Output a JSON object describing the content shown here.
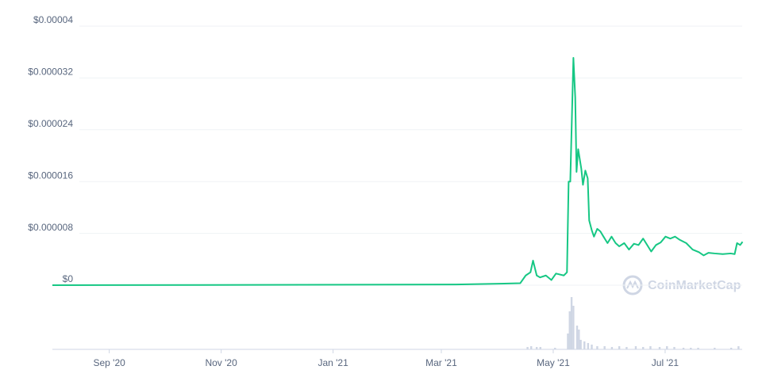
{
  "chart_data": {
    "type": "line",
    "color": "#16c784",
    "grid": true,
    "xlim": [
      0,
      376
    ],
    "xticks": [
      {
        "value": 31,
        "label": "Sep '20"
      },
      {
        "value": 92,
        "label": "Nov '20"
      },
      {
        "value": 153,
        "label": "Jan '21"
      },
      {
        "value": 212,
        "label": "Mar '21"
      },
      {
        "value": 273,
        "label": "May '21"
      },
      {
        "value": 334,
        "label": "Jul '21"
      }
    ],
    "ylim": [
      0,
      4e-05
    ],
    "yticks": [
      {
        "value": 0,
        "label": "$0"
      },
      {
        "value": 8e-06,
        "label": "$0.000008"
      },
      {
        "value": 1.6e-05,
        "label": "$0.000016"
      },
      {
        "value": 2.4e-05,
        "label": "$0.000024"
      },
      {
        "value": 3.2e-05,
        "label": "$0.000032"
      },
      {
        "value": 4e-05,
        "label": "$0.00004"
      }
    ],
    "x": [
      0,
      220,
      255,
      258,
      260.6,
      262,
      264,
      265.8,
      269,
      272,
      274.5,
      278.8,
      280.5,
      281.4,
      282.3,
      284,
      285,
      285.7,
      286.6,
      288.3,
      289.2,
      290.5,
      291.8,
      292.6,
      294,
      295.2,
      297,
      298.7,
      300.4,
      302.6,
      304.8,
      307,
      309,
      311.7,
      314.3,
      317,
      319.5,
      322,
      324,
      326.4,
      329,
      331.6,
      334.2,
      336.8,
      339.4,
      342,
      345.5,
      349,
      352.4,
      355,
      357.6,
      361,
      365.4,
      369.7,
      371.9,
      373.2,
      374.9,
      376.2
    ],
    "values": [
      0,
      1e-07,
      3e-07,
      1.5e-06,
      2e-06,
      3.8e-06,
      1.5e-06,
      1.2e-06,
      1.5e-06,
      8e-07,
      1.8e-06,
      1.5e-06,
      2e-06,
      1.6e-05,
      1.6e-05,
      3.51e-05,
      2.9e-05,
      1.75e-05,
      2.1e-05,
      1.8e-05,
      1.55e-05,
      1.77e-05,
      1.65e-05,
      1e-05,
      8.5e-06,
      7.5e-06,
      8.7e-06,
      8.3e-06,
      7.5e-06,
      6.5e-06,
      7.5e-06,
      6.5e-06,
      6e-06,
      6.5e-06,
      5.5e-06,
      6.4e-06,
      6.2e-06,
      7.2e-06,
      6.3e-06,
      5.2e-06,
      6.2e-06,
      6.6e-06,
      7.5e-06,
      7.2e-06,
      7.5e-06,
      7e-06,
      6.5e-06,
      5.5e-06,
      5.1e-06,
      4.6e-06,
      5e-06,
      4.9e-06,
      4.8e-06,
      4.9e-06,
      4.8e-06,
      6.5e-06,
      6.2e-06,
      6.7e-06
    ],
    "volume": {
      "color": "#cfd6e4",
      "x": [
        259,
        261,
        264,
        266,
        274,
        281,
        282,
        283,
        284,
        286,
        287,
        288,
        290,
        292,
        294,
        297,
        301,
        305,
        309,
        313,
        318,
        322,
        326,
        331,
        335,
        339,
        344,
        348,
        352,
        361,
        370,
        374
      ],
      "values": [
        3,
        4,
        3,
        3,
        2,
        20,
        48,
        66,
        55,
        30,
        25,
        12,
        10,
        8,
        6,
        4,
        4,
        3,
        4,
        3,
        4,
        3,
        4,
        3,
        4,
        3,
        2,
        2,
        2,
        2,
        2,
        4
      ]
    },
    "watermark": "CoinMarketCap"
  }
}
